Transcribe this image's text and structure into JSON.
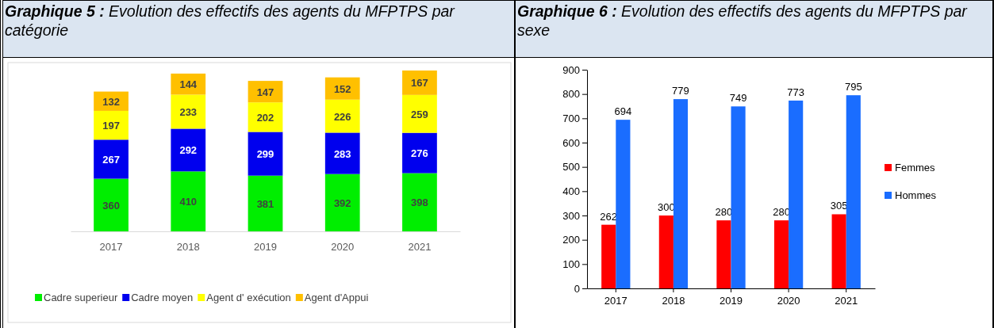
{
  "chart_data": [
    {
      "type": "bar",
      "title": "Graphique 5 : Evolution des effectifs des agents du MFPTPS par catégorie",
      "categories": [
        "2017",
        "2018",
        "2019",
        "2020",
        "2021"
      ],
      "stacked": true,
      "data_labels": true,
      "legend": "bottom",
      "series": [
        {
          "name": "Cadre superieur",
          "color": "#00ee00",
          "values": [
            360,
            410,
            381,
            392,
            398
          ]
        },
        {
          "name": "Cadre moyen",
          "color": "#0000ee",
          "values": [
            267,
            292,
            299,
            283,
            276
          ]
        },
        {
          "name": "Agent d' exécution",
          "color": "#ffff00",
          "values": [
            197,
            233,
            202,
            226,
            259
          ]
        },
        {
          "name": "Agent d'Appui",
          "color": "#ffc000",
          "values": [
            132,
            144,
            147,
            152,
            167
          ]
        }
      ]
    },
    {
      "type": "bar",
      "title": "Graphique 6 : Evolution des effectifs des agents du MFPTPS par sexe",
      "categories": [
        "2017",
        "2018",
        "2019",
        "2020",
        "2021"
      ],
      "ylim": [
        0,
        900
      ],
      "yticks": [
        0,
        100,
        200,
        300,
        400,
        500,
        600,
        700,
        800,
        900
      ],
      "data_labels": true,
      "legend": "right",
      "series": [
        {
          "name": "Femmes",
          "color": "#ff0000",
          "values": [
            262,
            300,
            280,
            280,
            305
          ]
        },
        {
          "name": "Hommes",
          "color": "#1a6dff",
          "values": [
            694,
            779,
            749,
            773,
            795
          ]
        }
      ]
    }
  ]
}
